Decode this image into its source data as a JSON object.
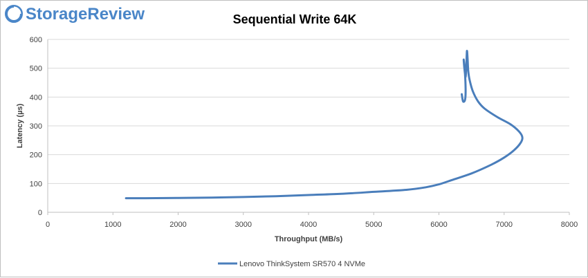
{
  "brand": {
    "name": "StorageReview",
    "logo_color": "#4a86c8"
  },
  "chart_data": {
    "type": "line",
    "title": "Sequential Write 64K",
    "xlabel": "Throughput (MB/s)",
    "ylabel": "Latency (µs)",
    "xlim": [
      0,
      8000
    ],
    "ylim": [
      0,
      600
    ],
    "xticks": [
      0,
      1000,
      2000,
      3000,
      4000,
      5000,
      6000,
      7000,
      8000
    ],
    "yticks": [
      0,
      100,
      200,
      300,
      400,
      500,
      600
    ],
    "grid": true,
    "legend_position": "bottom",
    "series": [
      {
        "name": "Lenovo ThinkSystem SR570 4 NVMe",
        "color": "#4a7ebb",
        "points": [
          [
            1200,
            49
          ],
          [
            1500,
            49
          ],
          [
            2000,
            50
          ],
          [
            2500,
            51
          ],
          [
            3000,
            53
          ],
          [
            3500,
            56
          ],
          [
            4000,
            60
          ],
          [
            4500,
            64
          ],
          [
            5000,
            71
          ],
          [
            5500,
            78
          ],
          [
            5800,
            87
          ],
          [
            6000,
            97
          ],
          [
            6200,
            112
          ],
          [
            6500,
            135
          ],
          [
            6800,
            165
          ],
          [
            7000,
            190
          ],
          [
            7150,
            215
          ],
          [
            7250,
            240
          ],
          [
            7280,
            260
          ],
          [
            7230,
            280
          ],
          [
            7100,
            305
          ],
          [
            6900,
            330
          ],
          [
            6700,
            360
          ],
          [
            6600,
            385
          ],
          [
            6520,
            420
          ],
          [
            6470,
            460
          ],
          [
            6450,
            490
          ],
          [
            6440,
            530
          ],
          [
            6430,
            560
          ],
          [
            6420,
            510
          ],
          [
            6410,
            470
          ],
          [
            6390,
            500
          ],
          [
            6380,
            530
          ],
          [
            6400,
            480
          ],
          [
            6410,
            420
          ],
          [
            6400,
            390
          ],
          [
            6370,
            385
          ],
          [
            6350,
            410
          ]
        ]
      }
    ]
  }
}
